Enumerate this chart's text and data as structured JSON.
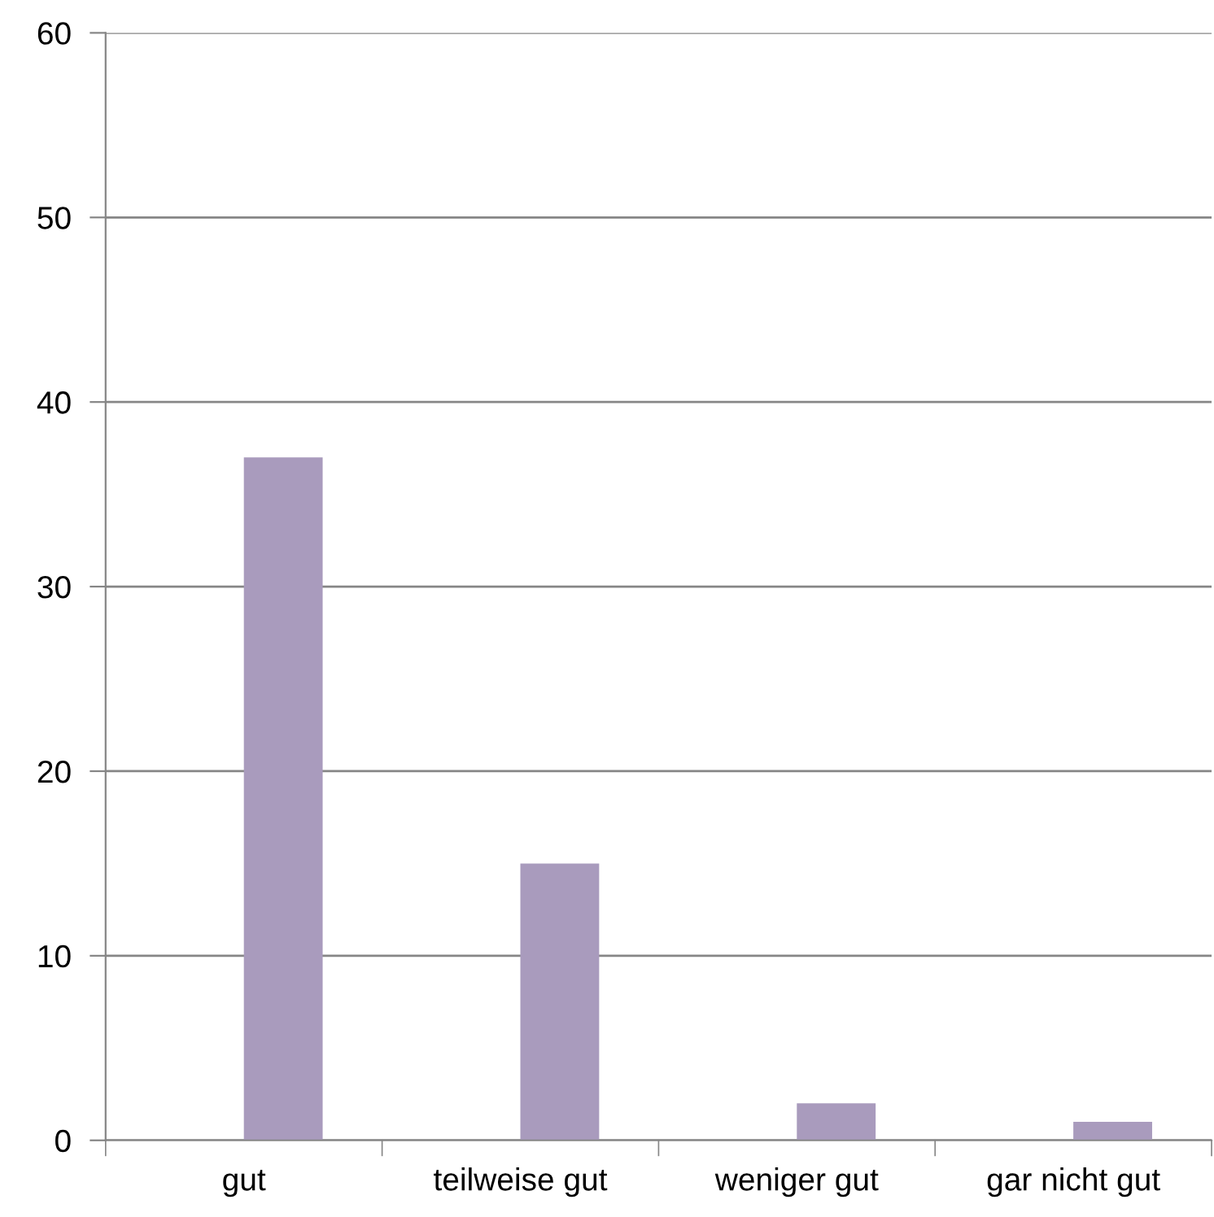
{
  "chart_data": {
    "type": "bar",
    "categories": [
      "gut",
      "teilweise gut",
      "weniger gut",
      "gar nicht gut"
    ],
    "values": [
      37,
      15,
      2,
      1
    ],
    "color": "#a99bbd",
    "ylim": [
      0,
      60
    ],
    "yticks": [
      0,
      10,
      20,
      30,
      40,
      50,
      60
    ],
    "grid": "y",
    "legend": false
  }
}
